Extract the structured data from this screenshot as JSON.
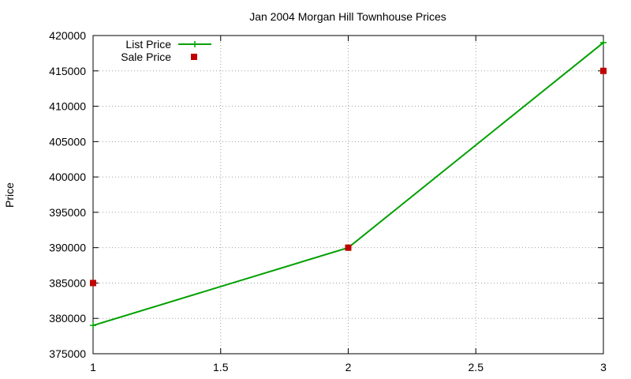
{
  "chart_data": {
    "type": "line",
    "title": "Jan 2004 Morgan Hill Townhouse Prices",
    "xlabel": "",
    "ylabel": "Price",
    "xlim": [
      1,
      3
    ],
    "ylim": [
      375000,
      420000
    ],
    "x_ticks": [
      1,
      1.5,
      2,
      2.5,
      3
    ],
    "x_tick_labels": [
      "1",
      "1.5",
      "2",
      "2.5",
      "3"
    ],
    "y_ticks": [
      375000,
      380000,
      385000,
      390000,
      395000,
      400000,
      405000,
      410000,
      415000,
      420000
    ],
    "y_tick_labels": [
      "375000",
      "380000",
      "385000",
      "390000",
      "395000",
      "400000",
      "405000",
      "410000",
      "415000",
      "420000"
    ],
    "grid": true,
    "legend_position": "top-left",
    "series": [
      {
        "name": "List Price",
        "style": "line+plus",
        "color": "#00a000",
        "x": [
          1,
          2,
          3
        ],
        "values": [
          379000,
          390000,
          419000
        ]
      },
      {
        "name": "Sale Price",
        "style": "square-points",
        "color": "#c00000",
        "x": [
          1,
          2,
          3
        ],
        "values": [
          385000,
          390000,
          415000
        ]
      }
    ]
  }
}
